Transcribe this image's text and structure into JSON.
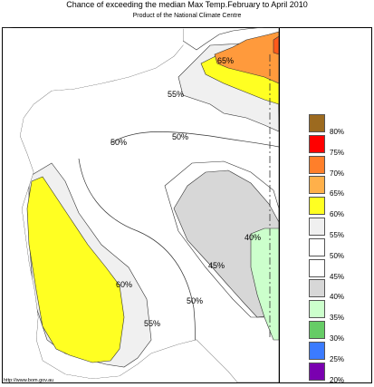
{
  "header": {
    "title": "Chance of exceeding the median Max Temp.February to April 2010",
    "subtitle": "Product of the National Climate Centre"
  },
  "footer": {
    "url": "http://www.bom.gov.au"
  },
  "legend": [
    {
      "label": "80%",
      "color": "#9c6a1f"
    },
    {
      "label": "75%",
      "color": "#ff0000"
    },
    {
      "label": "70%",
      "color": "#ff7f2a"
    },
    {
      "label": "65%",
      "color": "#ffb04a"
    },
    {
      "label": "60%",
      "color": "#ffff22"
    },
    {
      "label": "55%",
      "color": "#f0f0f0"
    },
    {
      "label": "50%",
      "color": "#ffffff"
    },
    {
      "label": "45%",
      "color": "#ffffff"
    },
    {
      "label": "40%",
      "color": "#d7d7d7"
    },
    {
      "label": "35%",
      "color": "#ccffcc"
    },
    {
      "label": "30%",
      "color": "#66cc66"
    },
    {
      "label": "25%",
      "color": "#3b7bff"
    },
    {
      "label": "20%",
      "color": "#7a00b0"
    }
  ],
  "contour_labels": {
    "l65": "65%",
    "l55_north": "55%",
    "l50_west": "50%",
    "l50_mid": "50%",
    "l40": "40%",
    "l45": "45%",
    "l60": "60%",
    "l50_south": "50%",
    "l55_south": "55%"
  }
}
